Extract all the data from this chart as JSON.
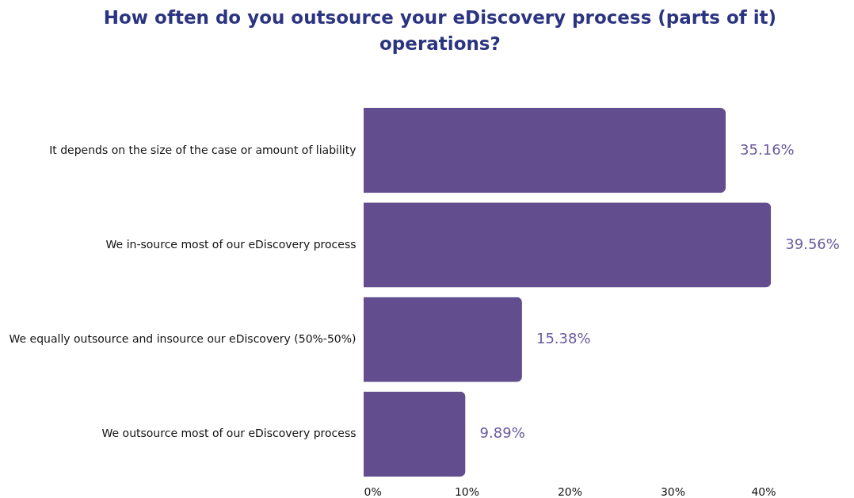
{
  "chart_data": {
    "type": "bar",
    "orientation": "horizontal",
    "title": "How often do you outsource your eDiscovery process (parts of it) operations?",
    "categories": [
      "It depends on the size of the case or amount of liability",
      "We in-source most of our eDiscovery process",
      "We equally outsource and insource our eDiscovery (50%-50%)",
      "We outsource most of our eDiscovery process"
    ],
    "values": [
      35.16,
      39.56,
      15.38,
      9.89
    ],
    "value_labels": [
      "35.16%",
      "39.56%",
      "15.38%",
      "9.89%"
    ],
    "color": "#624d8e",
    "xlim": [
      0,
      40
    ],
    "xticks": [
      {
        "value": 0,
        "label": "0%"
      },
      {
        "value": 10,
        "label": "10%"
      },
      {
        "value": 20,
        "label": "20%"
      },
      {
        "value": 30,
        "label": "30%"
      },
      {
        "value": 40,
        "label": "40%"
      }
    ],
    "grid": false
  }
}
